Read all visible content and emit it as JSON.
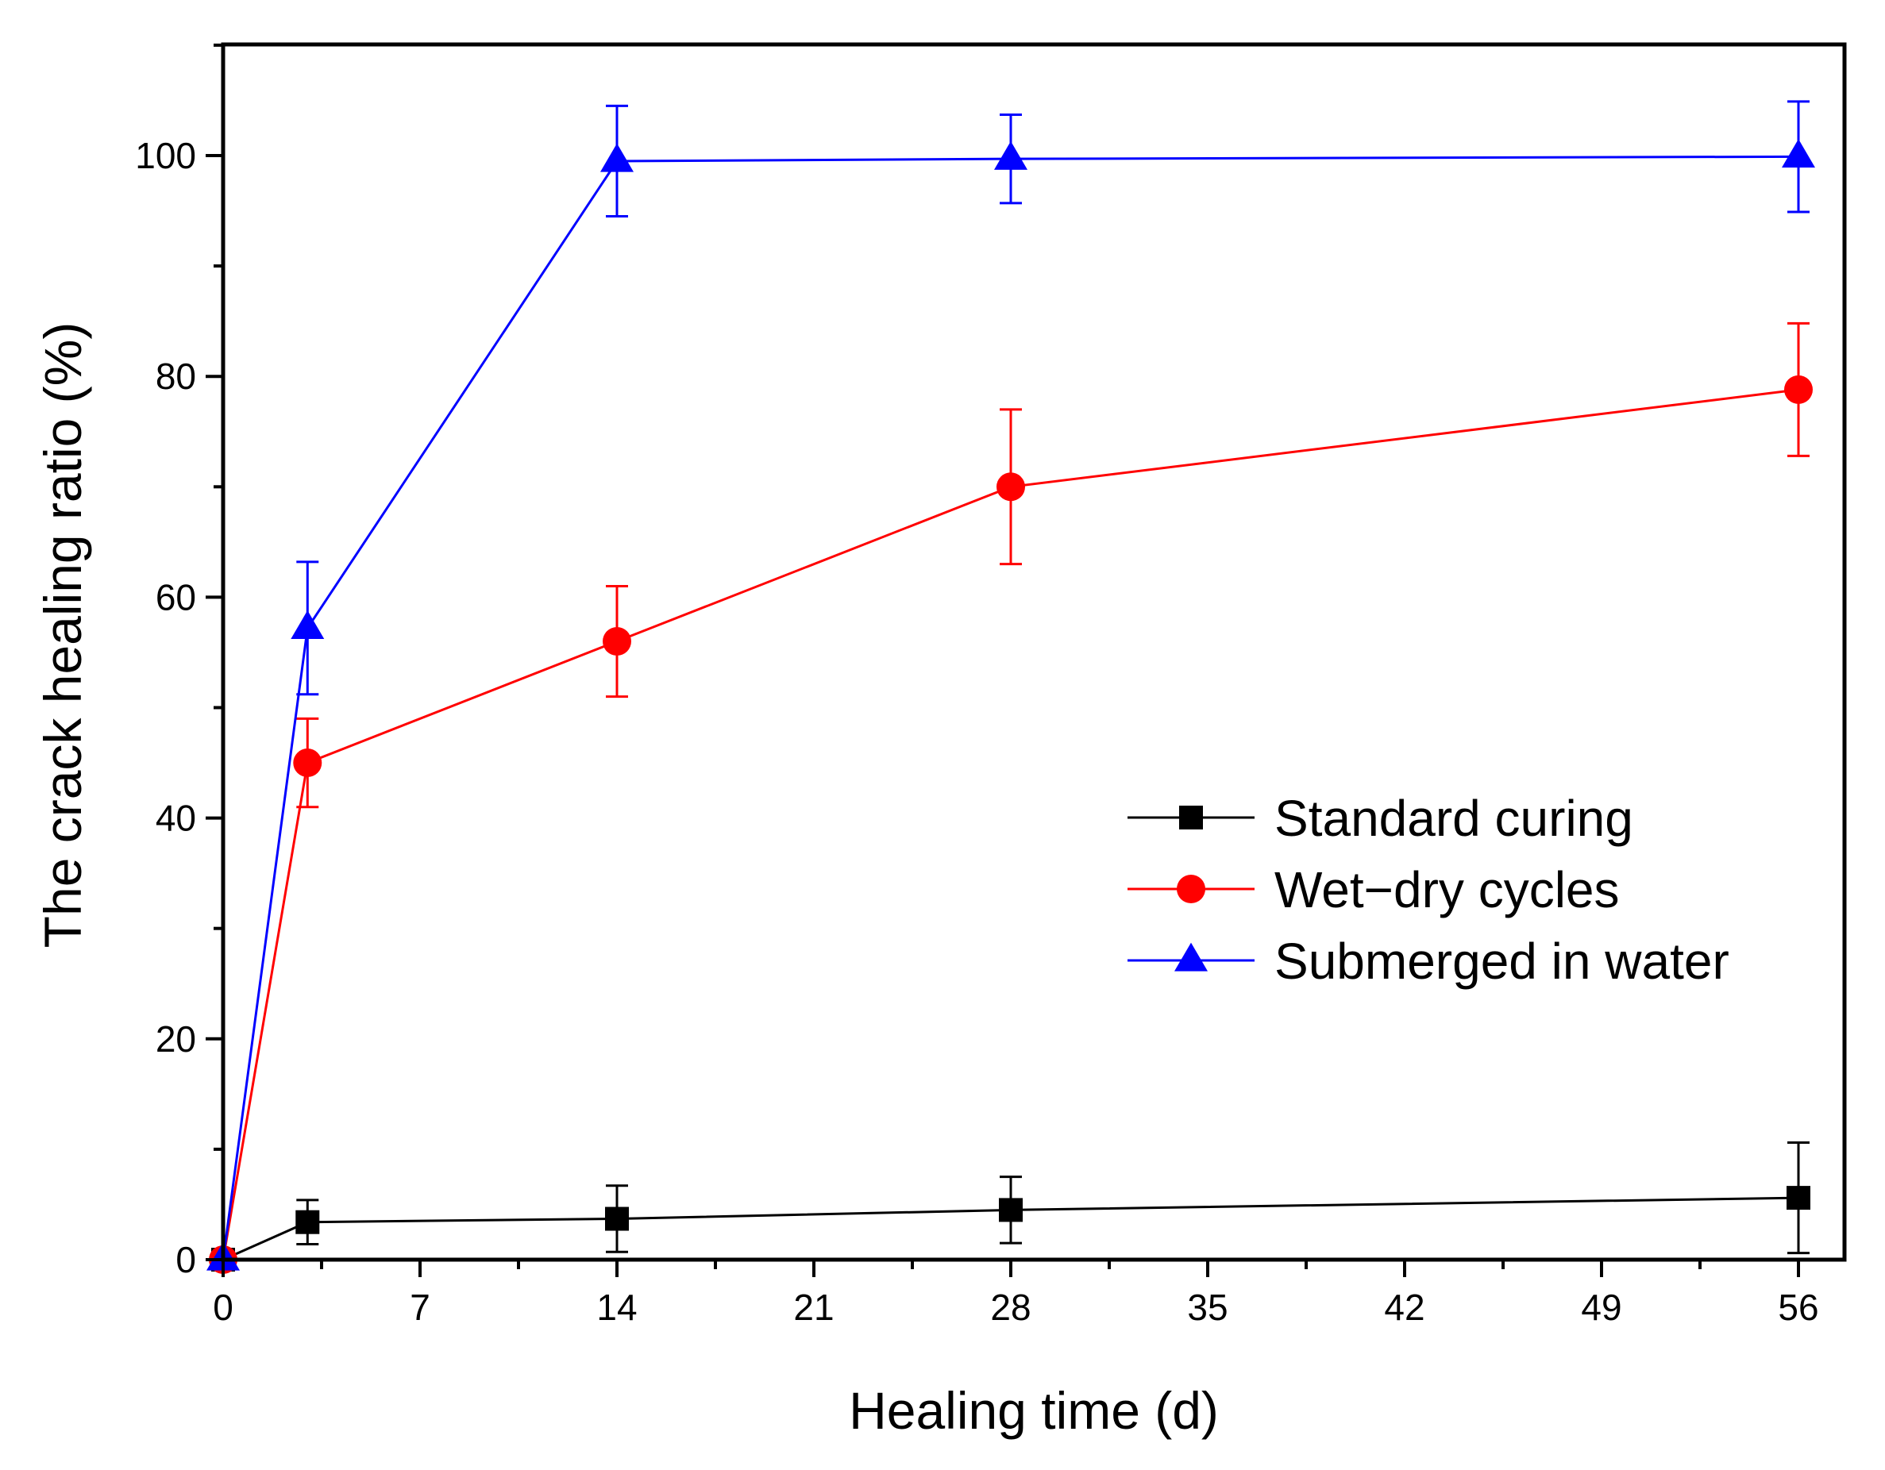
{
  "chart_data": {
    "type": "line",
    "title": "",
    "xlabel": "Healing time (d)",
    "ylabel": "The crack healing ratio (%)",
    "xlim": [
      0,
      58
    ],
    "ylim": [
      0,
      110
    ],
    "xticks": [
      0,
      7,
      14,
      21,
      28,
      35,
      42,
      49,
      56
    ],
    "yticks": [
      0,
      20,
      40,
      60,
      80,
      100
    ],
    "x_minor_step": 3.5,
    "y_minor_step": 10,
    "grid": false,
    "legend_position": "center-right",
    "series": [
      {
        "name": "Standard curing",
        "color": "#000000",
        "marker": "square",
        "x": [
          0,
          3,
          14,
          28,
          56
        ],
        "y": [
          0,
          3.4,
          3.7,
          4.5,
          5.6
        ],
        "err": [
          0,
          2.0,
          3.0,
          3.0,
          5.0
        ]
      },
      {
        "name": "Wet−dry cycles",
        "color": "#ff0000",
        "marker": "circle",
        "x": [
          0,
          3,
          14,
          28,
          56
        ],
        "y": [
          0,
          45,
          56,
          70,
          78.8
        ],
        "err": [
          0,
          4.0,
          5.0,
          7.0,
          6.0
        ]
      },
      {
        "name": "Submerged in water",
        "color": "#0000ff",
        "marker": "triangle",
        "x": [
          0,
          3,
          14,
          28,
          56
        ],
        "y": [
          0,
          57.2,
          99.5,
          99.7,
          99.9
        ],
        "err": [
          0,
          6.0,
          5.0,
          4.0,
          5.0
        ]
      }
    ]
  }
}
